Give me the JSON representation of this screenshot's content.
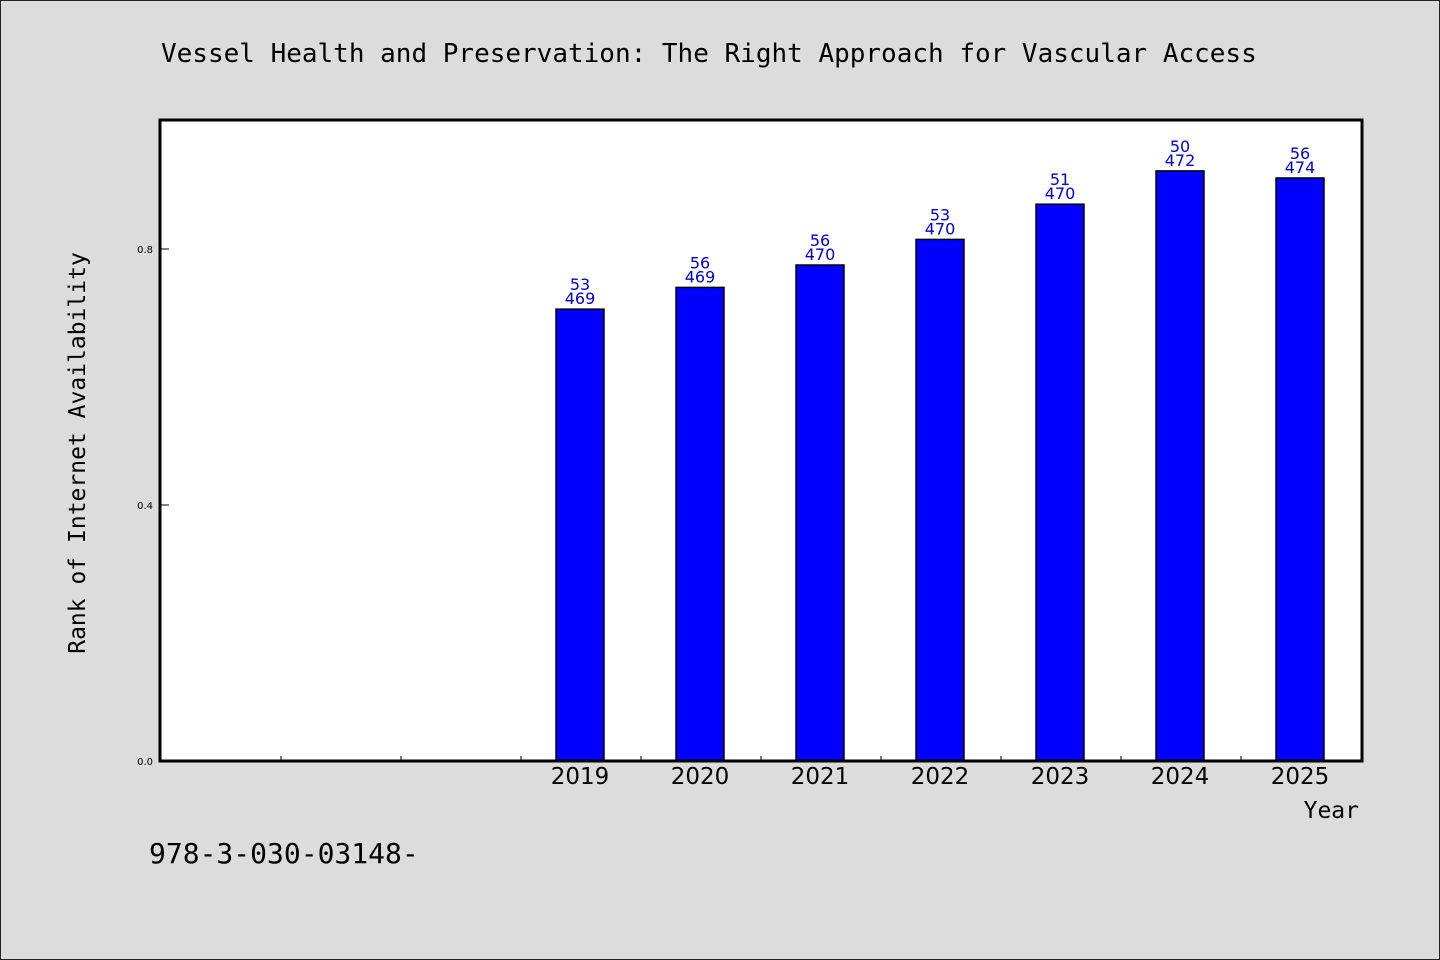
{
  "chart_data": {
    "type": "bar",
    "title": "Vessel Health and Preservation: The Right Approach for Vascular Access",
    "xlabel": "Year",
    "ylabel": "Rank of Internet Availability",
    "categories": [
      "",
      "",
      "",
      "2019",
      "2020",
      "2021",
      "2022",
      "2023",
      "2024",
      "2025"
    ],
    "values": [
      null,
      null,
      null,
      0.706,
      0.74,
      0.775,
      0.815,
      0.87,
      0.922,
      0.911
    ],
    "labels_top": [
      "",
      "",
      "",
      "53",
      "56",
      "56",
      "53",
      "51",
      "50",
      "56"
    ],
    "labels_bottom": [
      "",
      "",
      "",
      "469",
      "469",
      "470",
      "470",
      "470",
      "472",
      "474"
    ],
    "yticks": [
      0.0,
      0.4,
      0.8
    ],
    "ytick_labels": [
      "0.0",
      "0.4",
      "0.8"
    ],
    "ylim": [
      0,
      1.0
    ],
    "bar_color": "#0000ff",
    "label_color": "#0000cc",
    "grid": false
  },
  "footer": {
    "text": "978-3-030-03148-"
  }
}
